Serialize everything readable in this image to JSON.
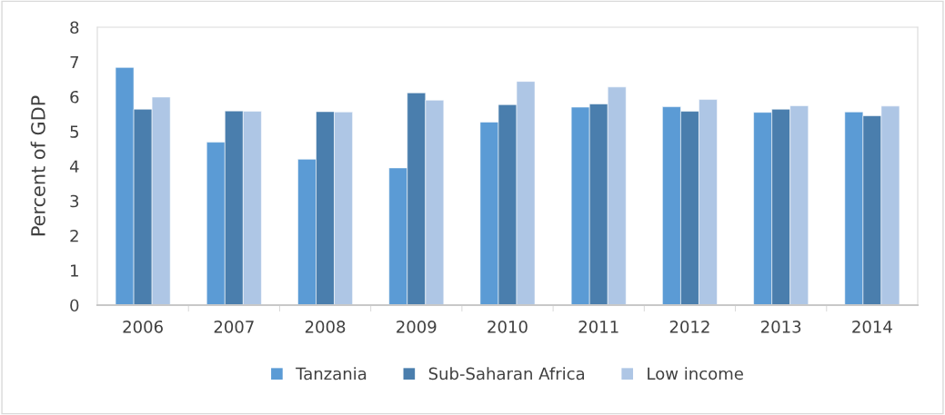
{
  "chart_data": {
    "type": "bar",
    "ylabel": "Percent of GDP",
    "categories": [
      "2006",
      "2007",
      "2008",
      "2009",
      "2010",
      "2011",
      "2012",
      "2013",
      "2014"
    ],
    "series": [
      {
        "name": "Tanzania",
        "color": "#5b9bd5",
        "values": [
          6.84,
          4.69,
          4.2,
          3.95,
          5.27,
          5.7,
          5.71,
          5.55,
          5.56
        ]
      },
      {
        "name": "Sub-Saharan Africa",
        "color": "#4a7ead",
        "values": [
          5.64,
          5.59,
          5.57,
          6.11,
          5.77,
          5.79,
          5.58,
          5.64,
          5.45
        ]
      },
      {
        "name": "Low income",
        "color": "#aec6e5",
        "values": [
          5.99,
          5.58,
          5.56,
          5.9,
          6.44,
          6.28,
          5.92,
          5.74,
          5.73
        ]
      }
    ],
    "ylim": [
      0,
      8
    ],
    "yticks": [
      0,
      1,
      2,
      3,
      4,
      5,
      6,
      7,
      8
    ],
    "grid": false,
    "legend": "bottom"
  }
}
